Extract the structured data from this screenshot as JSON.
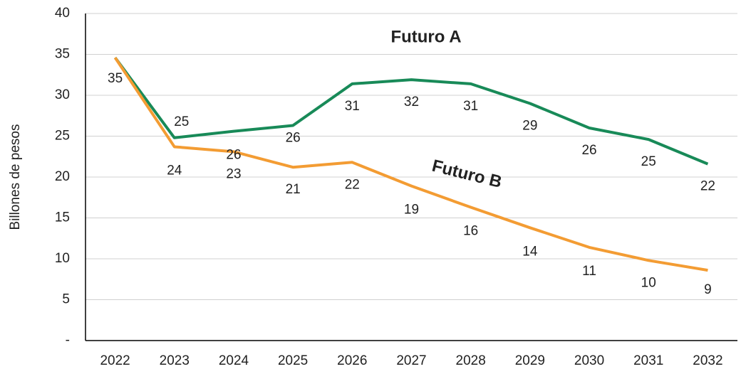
{
  "chart_data": {
    "type": "line",
    "ylabel": "Billones de pesos",
    "categories": [
      "2022",
      "2023",
      "2024",
      "2025",
      "2026",
      "2027",
      "2028",
      "2029",
      "2030",
      "2031",
      "2032"
    ],
    "series": [
      {
        "name": "Futuro A",
        "color": "#188a58",
        "values": [
          34.6,
          24.8,
          25.6,
          26.3,
          31.4,
          31.9,
          31.4,
          29.0,
          26.0,
          24.6,
          21.6
        ],
        "value_labels": [
          "35",
          "25",
          "26",
          "26",
          "31",
          "32",
          "31",
          "29",
          "26",
          "25",
          "22"
        ]
      },
      {
        "name": "Futuro B",
        "color": "#f39c33",
        "values": [
          34.6,
          23.7,
          23.1,
          21.2,
          21.8,
          18.9,
          16.3,
          13.8,
          11.4,
          9.8,
          8.6
        ],
        "value_labels": [
          null,
          "24",
          "23",
          "21",
          "22",
          "19",
          "16",
          "14",
          "11",
          "10",
          "9"
        ]
      }
    ],
    "ylim": [
      0,
      40
    ],
    "yticks": [
      {
        "value": 0,
        "label": "-"
      },
      5,
      10,
      15,
      20,
      25,
      30,
      35,
      40
    ],
    "grid": true
  }
}
